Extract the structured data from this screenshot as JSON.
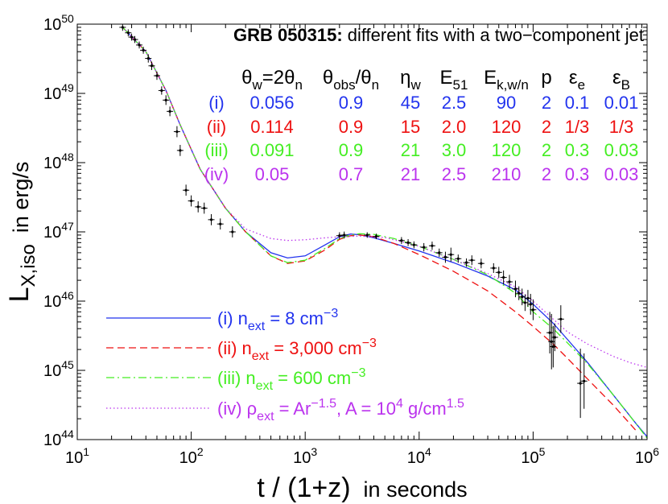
{
  "chart_data": {
    "type": "line",
    "title_bold": "GRB 050315:",
    "title_rest": "different fits with a two−component jet",
    "xlabel": {
      "main": "t / (1+z)",
      "rest": "in seconds"
    },
    "ylabel": {
      "main": "L",
      "sub": "X,iso",
      "rest": "in erg/s"
    },
    "xscale": "log",
    "yscale": "log",
    "xlim": [
      10,
      1000000
    ],
    "ylim": [
      1e+44,
      1e+50
    ],
    "x_ticks": [
      {
        "value": 10,
        "base": "10",
        "exp": "1"
      },
      {
        "value": 100,
        "base": "10",
        "exp": "2"
      },
      {
        "value": 1000,
        "base": "10",
        "exp": "3"
      },
      {
        "value": 10000,
        "base": "10",
        "exp": "4"
      },
      {
        "value": 100000,
        "base": "10",
        "exp": "5"
      },
      {
        "value": 1000000,
        "base": "10",
        "exp": "6"
      }
    ],
    "y_ticks": [
      {
        "value": 1e+44,
        "base": "10",
        "exp": "44"
      },
      {
        "value": 1e+45,
        "base": "10",
        "exp": "45"
      },
      {
        "value": 1e+46,
        "base": "10",
        "exp": "46"
      },
      {
        "value": 1e+47,
        "base": "10",
        "exp": "47"
      },
      {
        "value": 1e+48,
        "base": "10",
        "exp": "48"
      },
      {
        "value": 1e+49,
        "base": "10",
        "exp": "49"
      },
      {
        "value": 1e+50,
        "base": "10",
        "exp": "50"
      }
    ],
    "param_table": {
      "headers": [
        [
          {
            "t": "θ"
          },
          {
            "t": "w",
            "sub": 1
          },
          {
            "t": "=2θ"
          },
          {
            "t": "n",
            "sub": 1
          }
        ],
        [
          {
            "t": "θ"
          },
          {
            "t": "obs",
            "sub": 1
          },
          {
            "t": "/θ"
          },
          {
            "t": "n",
            "sub": 1
          }
        ],
        [
          {
            "t": "η"
          },
          {
            "t": "w",
            "sub": 1
          }
        ],
        [
          {
            "t": "E"
          },
          {
            "t": "51",
            "sub": 1
          }
        ],
        [
          {
            "t": "E"
          },
          {
            "t": "k,w/n",
            "sub": 1
          }
        ],
        [
          {
            "t": "p"
          }
        ],
        [
          {
            "t": "ε"
          },
          {
            "t": "e",
            "sub": 1
          }
        ],
        [
          {
            "t": "ε"
          },
          {
            "t": "B",
            "sub": 1
          }
        ]
      ],
      "rows": [
        {
          "label": "(i)",
          "color": "#2233ee",
          "values": [
            "0.056",
            "0.9",
            "45",
            "2.5",
            "90",
            "2",
            "0.1",
            "0.01"
          ]
        },
        {
          "label": "(ii)",
          "color": "#ee1111",
          "values": [
            "0.114",
            "0.9",
            "15",
            "2.0",
            "120",
            "2",
            "1/3",
            "1/3"
          ]
        },
        {
          "label": "(iii)",
          "color": "#44ee22",
          "values": [
            "0.091",
            "0.9",
            "21",
            "3.0",
            "120",
            "2",
            "0.3",
            "0.03"
          ]
        },
        {
          "label": "(iv)",
          "color": "#bb33ee",
          "values": [
            "0.05",
            "0.7",
            "21",
            "2.5",
            "210",
            "2",
            "0.3",
            "0.03"
          ]
        }
      ]
    },
    "legend": [
      {
        "series": "i",
        "parts": [
          {
            "t": "(i) n"
          },
          {
            "t": "ext",
            "sub": 1
          },
          {
            "t": " = 8 cm"
          },
          {
            "t": "−3",
            "sup": 1
          }
        ]
      },
      {
        "series": "ii",
        "parts": [
          {
            "t": "(ii) n"
          },
          {
            "t": "ext",
            "sub": 1
          },
          {
            "t": " = 3,000 cm"
          },
          {
            "t": "−3",
            "sup": 1
          }
        ]
      },
      {
        "series": "iii",
        "parts": [
          {
            "t": "(iii) n"
          },
          {
            "t": "ext",
            "sub": 1
          },
          {
            "t": " = 600 cm"
          },
          {
            "t": "−3",
            "sup": 1
          }
        ]
      },
      {
        "series": "iv",
        "parts": [
          {
            "t": "(iv) ρ"
          },
          {
            "t": "ext",
            "sub": 1
          },
          {
            "t": " = Ar"
          },
          {
            "t": "−1.5",
            "sup": 1
          },
          {
            "t": ", A = 10"
          },
          {
            "t": "4",
            "sup": 1
          },
          {
            "t": " g/cm"
          },
          {
            "t": "1.5",
            "sup": 1
          }
        ]
      }
    ],
    "series": [
      {
        "id": "i",
        "name": "(i)",
        "color": "#2233ee",
        "dash": "solid",
        "x": [
          25,
          40,
          60,
          80,
          120,
          200,
          300,
          500,
          700,
          1000,
          1500,
          2000,
          2500,
          3000,
          4000,
          6000,
          10000,
          20000,
          40000,
          70000,
          100000,
          150000,
          200000,
          300000,
          500000,
          800000,
          1000000
        ],
        "y": [
          9e+49,
          4e+49,
          1.1e+49,
          3.5e+48,
          8e+47,
          2.2e+47,
          1e+47,
          5e+46,
          4.2e+46,
          4.5e+46,
          6.5e+46,
          8.5e+46,
          9.3e+46,
          9.1e+46,
          8.2e+46,
          6.8e+46,
          5.3e+46,
          3.6e+46,
          2.3e+46,
          1.45e+46,
          9e+45,
          4.8e+45,
          2.8e+45,
          1.3e+45,
          4.5e+44,
          1.7e+44,
          1.1e+44
        ]
      },
      {
        "id": "ii",
        "name": "(ii)",
        "color": "#ee1111",
        "dash": "dashed",
        "x": [
          25,
          40,
          60,
          80,
          120,
          200,
          300,
          500,
          700,
          1000,
          1500,
          2000,
          2500,
          3000,
          4000,
          6000,
          10000,
          20000,
          40000,
          70000,
          100000,
          150000,
          200000,
          300000,
          500000,
          800000
        ],
        "y": [
          9e+49,
          4e+49,
          1.1e+49,
          3.5e+48,
          8e+47,
          2.2e+47,
          1e+47,
          4.5e+46,
          3.5e+46,
          3.8e+46,
          5.5e+46,
          7.8e+46,
          8.8e+46,
          9e+46,
          8.5e+46,
          6.8e+46,
          4.7e+46,
          2.7e+46,
          1.4e+46,
          7e+45,
          4.3e+45,
          2.4e+45,
          1.5e+45,
          7.5e+44,
          3.2e+44,
          1.35e+44
        ]
      },
      {
        "id": "iii",
        "name": "(iii)",
        "color": "#44ee22",
        "dash": "dashdot",
        "x": [
          25,
          40,
          60,
          80,
          120,
          200,
          300,
          500,
          700,
          1000,
          1500,
          2000,
          2500,
          3000,
          4000,
          6000,
          10000,
          20000,
          40000,
          70000,
          100000,
          150000,
          200000,
          300000,
          500000,
          800000,
          1000000
        ],
        "y": [
          9e+49,
          4e+49,
          1.1e+49,
          3.5e+48,
          8e+47,
          2.2e+47,
          1e+47,
          4.5e+46,
          3.6e+46,
          3.9e+46,
          5.8e+46,
          8e+46,
          9e+46,
          9.4e+46,
          9.2e+46,
          8e+46,
          6.2e+46,
          4e+46,
          2.4e+46,
          1.3e+46,
          7e+45,
          4e+45,
          2.5e+45,
          1.25e+45,
          4.5e+44,
          1.7e+44,
          1.05e+44
        ]
      },
      {
        "id": "iv",
        "name": "(iv)",
        "color": "#bb33ee",
        "dash": "dotted",
        "x": [
          25,
          40,
          60,
          80,
          120,
          200,
          300,
          500,
          700,
          1000,
          1500,
          2000,
          3000,
          5000,
          10000,
          20000,
          40000,
          70000,
          100000,
          150000,
          200000,
          300000,
          500000,
          700000,
          1000000
        ],
        "y": [
          9e+49,
          4e+49,
          1.1e+49,
          3.5e+48,
          8e+47,
          2.2e+47,
          1.1e+47,
          8e+46,
          7.5e+46,
          7.7e+46,
          8.2e+46,
          8.5e+46,
          8.7e+46,
          8.3e+46,
          6.2e+46,
          4e+46,
          2.5e+46,
          1.6e+46,
          1e+46,
          5.5e+45,
          3.6e+45,
          2.4e+45,
          1.6e+45,
          1.3e+45,
          1.1e+45
        ]
      }
    ],
    "data_points": [
      {
        "t": 25,
        "L": 9e+49,
        "err": 0.05
      },
      {
        "t": 28,
        "L": 7.5e+49,
        "err": 0.05
      },
      {
        "t": 30,
        "L": 6.5e+49,
        "err": 0.05
      },
      {
        "t": 32,
        "L": 6e+49,
        "err": 0.05
      },
      {
        "t": 35,
        "L": 5e+49,
        "err": 0.05
      },
      {
        "t": 38,
        "L": 4.2e+49,
        "err": 0.05
      },
      {
        "t": 42,
        "L": 3.2e+49,
        "err": 0.06
      },
      {
        "t": 45,
        "L": 2.5e+49,
        "err": 0.06
      },
      {
        "t": 50,
        "L": 1.8e+49,
        "err": 0.06
      },
      {
        "t": 55,
        "L": 1.1e+49,
        "err": 0.06
      },
      {
        "t": 60,
        "L": 8e+48,
        "err": 0.07
      },
      {
        "t": 65,
        "L": 5.5e+48,
        "err": 0.07
      },
      {
        "t": 75,
        "L": 2.8e+48,
        "err": 0.08
      },
      {
        "t": 80,
        "L": 1.5e+48,
        "err": 0.08
      },
      {
        "t": 90,
        "L": 4e+47,
        "err": 0.08
      },
      {
        "t": 100,
        "L": 2.8e+47,
        "err": 0.08
      },
      {
        "t": 115,
        "L": 2.3e+47,
        "err": 0.08
      },
      {
        "t": 130,
        "L": 2.2e+47,
        "err": 0.08
      },
      {
        "t": 150,
        "L": 1.5e+47,
        "err": 0.08
      },
      {
        "t": 180,
        "L": 1.3e+47,
        "err": 0.08
      },
      {
        "t": 230,
        "L": 1e+47,
        "err": 0.08
      },
      {
        "t": 2000,
        "L": 8.8e+46,
        "err": 0.05
      },
      {
        "t": 2200,
        "L": 9e+46,
        "err": 0.05
      },
      {
        "t": 3500,
        "L": 9e+46,
        "err": 0.04
      },
      {
        "t": 4200,
        "L": 8.6e+46,
        "err": 0.04
      },
      {
        "t": 7000,
        "L": 7.5e+46,
        "err": 0.05
      },
      {
        "t": 8000,
        "L": 7e+46,
        "err": 0.05
      },
      {
        "t": 9000,
        "L": 6.5e+46,
        "err": 0.05
      },
      {
        "t": 11000,
        "L": 6e+46,
        "err": 0.06
      },
      {
        "t": 13000,
        "L": 6.3e+46,
        "err": 0.06
      },
      {
        "t": 15000,
        "L": 5e+46,
        "err": 0.06
      },
      {
        "t": 17000,
        "L": 4.3e+46,
        "err": 0.08
      },
      {
        "t": 19000,
        "L": 4.7e+46,
        "err": 0.1
      },
      {
        "t": 22000,
        "L": 4.1e+46,
        "err": 0.06
      },
      {
        "t": 26000,
        "L": 3.6e+46,
        "err": 0.06
      },
      {
        "t": 29000,
        "L": 3.9e+46,
        "err": 0.07
      },
      {
        "t": 35000,
        "L": 3.5e+46,
        "err": 0.07
      },
      {
        "t": 45000,
        "L": 3e+46,
        "err": 0.07
      },
      {
        "t": 50000,
        "L": 2.6e+46,
        "err": 0.08
      },
      {
        "t": 55000,
        "L": 2.2e+46,
        "err": 0.1
      },
      {
        "t": 62000,
        "L": 1.9e+46,
        "err": 0.1
      },
      {
        "t": 70000,
        "L": 1.5e+46,
        "err": 0.12
      },
      {
        "t": 75000,
        "L": 1.3e+46,
        "err": 0.1
      },
      {
        "t": 80000,
        "L": 1.15e+46,
        "err": 0.12
      },
      {
        "t": 85000,
        "L": 9.5e+45,
        "err": 0.12
      },
      {
        "t": 90000,
        "L": 1.1e+46,
        "err": 0.12
      },
      {
        "t": 95000,
        "L": 9e+45,
        "err": 0.15
      },
      {
        "t": 100000,
        "L": 7.5e+45,
        "err": 0.15
      },
      {
        "t": 140000,
        "L": 3.5e+45,
        "err": 0.3
      },
      {
        "t": 145000,
        "L": 2.6e+45,
        "err": 0.4
      },
      {
        "t": 150000,
        "L": 2.2e+45,
        "err": 0.3
      },
      {
        "t": 155000,
        "L": 3e+45,
        "err": 0.2
      },
      {
        "t": 175000,
        "L": 5.5e+45,
        "err": 0.2
      },
      {
        "t": 260000,
        "L": 6.5e+44,
        "err": 0.5
      },
      {
        "t": 280000,
        "L": 7e+44,
        "err": 0.4
      }
    ]
  }
}
